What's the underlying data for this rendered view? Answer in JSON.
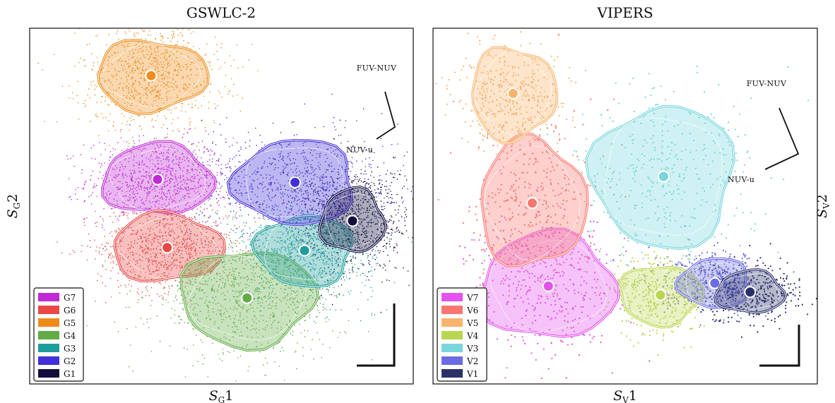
{
  "chart_data": [
    {
      "type": "scatter",
      "title": "GSWLC-2",
      "xlabel": "S_G1",
      "ylabel": "S_G2",
      "grid": false,
      "legend": "bottom-left",
      "vector_labels": [
        "FUV-NUV",
        "NUV-u"
      ],
      "series": [
        {
          "name": "G7",
          "color": "#c02ad4",
          "centroid": [
            -1.0,
            0.45
          ]
        },
        {
          "name": "G6",
          "color": "#e84846",
          "centroid": [
            -0.85,
            -0.7
          ]
        },
        {
          "name": "G5",
          "color": "#ee8c1a",
          "centroid": [
            -1.1,
            2.2
          ]
        },
        {
          "name": "G4",
          "color": "#62ab45",
          "centroid": [
            0.4,
            -1.55
          ]
        },
        {
          "name": "G3",
          "color": "#1d9e9c",
          "centroid": [
            1.3,
            -0.75
          ]
        },
        {
          "name": "G2",
          "color": "#4330d6",
          "centroid": [
            1.15,
            0.4
          ]
        },
        {
          "name": "G1",
          "color": "#110d3d",
          "centroid": [
            2.05,
            -0.25
          ]
        }
      ]
    },
    {
      "type": "scatter",
      "title": "VIPERS",
      "xlabel": "S_V1",
      "ylabel": "S_V2",
      "grid": false,
      "legend": "bottom-left",
      "vector_labels": [
        "FUV-NUV",
        "NUV-u"
      ],
      "series": [
        {
          "name": "V7",
          "color": "#e352ee",
          "centroid": [
            -1.2,
            -1.35
          ]
        },
        {
          "name": "V6",
          "color": "#f97670",
          "centroid": [
            -1.45,
            0.05
          ]
        },
        {
          "name": "V5",
          "color": "#f8b46e",
          "centroid": [
            -1.75,
            1.9
          ]
        },
        {
          "name": "V4",
          "color": "#b9d650",
          "centroid": [
            0.55,
            -1.5
          ]
        },
        {
          "name": "V3",
          "color": "#78d6dc",
          "centroid": [
            0.6,
            0.5
          ]
        },
        {
          "name": "V2",
          "color": "#6b6ce2",
          "centroid": [
            1.4,
            -1.3
          ]
        },
        {
          "name": "V1",
          "color": "#2a3068",
          "centroid": [
            1.95,
            -1.45
          ]
        }
      ]
    }
  ]
}
